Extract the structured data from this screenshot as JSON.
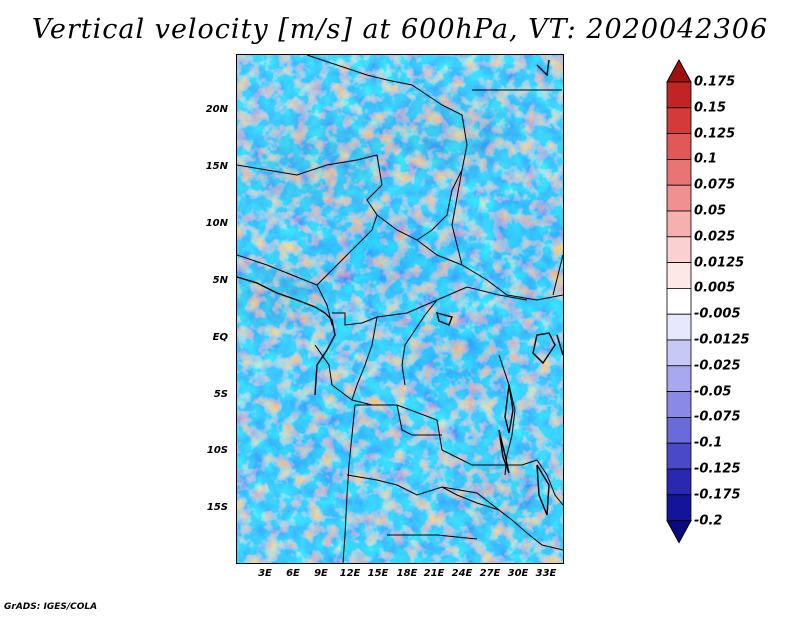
{
  "title": "Vertical velocity [m/s] at 600hPa, VT: 2020042306",
  "footer": "GrADS: IGES/COLA",
  "axes": {
    "y_labels": [
      "20N",
      "15N",
      "10N",
      "5N",
      "EQ",
      "5S",
      "10S",
      "15S"
    ],
    "x_labels": [
      "3E",
      "6E",
      "9E",
      "12E",
      "15E",
      "18E",
      "21E",
      "24E",
      "27E",
      "30E",
      "33E"
    ]
  },
  "colorbar": {
    "labels": [
      "0.175",
      "0.15",
      "0.125",
      "0.1",
      "0.075",
      "0.05",
      "0.025",
      "0.0125",
      "0.005",
      "-0.005",
      "-0.0125",
      "-0.025",
      "-0.05",
      "-0.075",
      "-0.1",
      "-0.125",
      "-0.175",
      "-0.2"
    ],
    "colors": [
      "#a01010",
      "#c02424",
      "#d43a3a",
      "#e05858",
      "#e87474",
      "#f09090",
      "#f6b0b0",
      "#fad0d0",
      "#fde8e8",
      "#ffffff",
      "#e8e8fc",
      "#c8c8f6",
      "#a8a8f0",
      "#8a8ae6",
      "#6a6ad8",
      "#4a4ac8",
      "#2828b0",
      "#14149a",
      "#0a0a80"
    ]
  },
  "chart_data": {
    "type": "heatmap",
    "title": "Vertical velocity [m/s] at 600hPa, VT: 2020042306",
    "variable": "Vertical velocity",
    "units": "m/s",
    "level": "600hPa",
    "valid_time": "2020042306",
    "lon_ticks": [
      "3E",
      "6E",
      "9E",
      "12E",
      "15E",
      "18E",
      "21E",
      "24E",
      "27E",
      "30E",
      "33E"
    ],
    "lat_ticks": [
      "20N",
      "15N",
      "10N",
      "5N",
      "EQ",
      "5S",
      "10S",
      "15S"
    ],
    "contour_levels": [
      -0.2,
      -0.175,
      -0.125,
      -0.1,
      -0.075,
      -0.05,
      -0.025,
      -0.0125,
      -0.005,
      0.005,
      0.0125,
      0.025,
      0.05,
      0.075,
      0.1,
      0.125,
      0.15,
      0.175
    ]
  }
}
